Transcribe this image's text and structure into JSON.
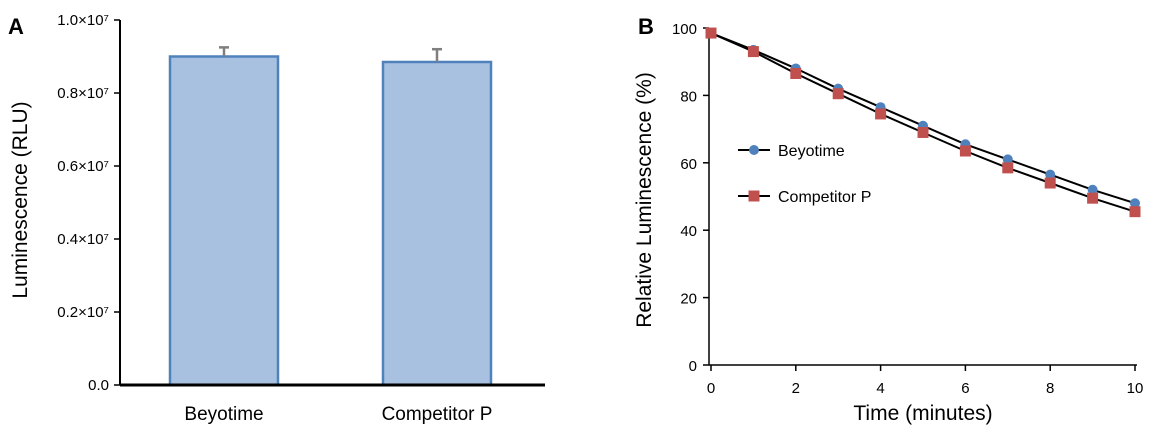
{
  "chart_data": [
    {
      "panel": "A",
      "type": "bar",
      "categories": [
        "Beyotime",
        "Competitor P"
      ],
      "values": [
        9000000,
        8850000
      ],
      "errors": [
        250000,
        350000
      ],
      "ylabel": "Luminescence (RLU)",
      "ylim": [
        0,
        10000000
      ],
      "ytick_labels": [
        "0.0",
        "0.2×10⁷",
        "0.4×10⁷",
        "0.6×10⁷",
        "0.8×10⁷",
        "1.0×10⁷"
      ],
      "bar_color": "#a9c1e0",
      "bar_edge_color": "#4f81bd",
      "error_color": "#7f7f7f"
    },
    {
      "panel": "B",
      "type": "line",
      "x": [
        0,
        1,
        2,
        3,
        4,
        5,
        6,
        7,
        8,
        9,
        10
      ],
      "series": [
        {
          "name": "Beyotime",
          "values": [
            98.5,
            93.5,
            88,
            82,
            76.5,
            71,
            65.5,
            61,
            56.5,
            52,
            48
          ],
          "color": "#4f81bd",
          "marker": "circle"
        },
        {
          "name": "Competitor P",
          "values": [
            98.5,
            93,
            86.5,
            80.5,
            74.5,
            69,
            63.5,
            58.5,
            54,
            49.5,
            45.5
          ],
          "color": "#c0504d",
          "marker": "square"
        }
      ],
      "xlabel": "Time (minutes)",
      "ylabel": "Relative Luminescence (%)",
      "xlim": [
        0,
        10
      ],
      "ylim": [
        0,
        100
      ],
      "xticks": [
        0,
        2,
        4,
        6,
        8,
        10
      ],
      "yticks": [
        0,
        20,
        40,
        60,
        80,
        100
      ],
      "line_color": "#000000",
      "legend": "center-left"
    }
  ]
}
